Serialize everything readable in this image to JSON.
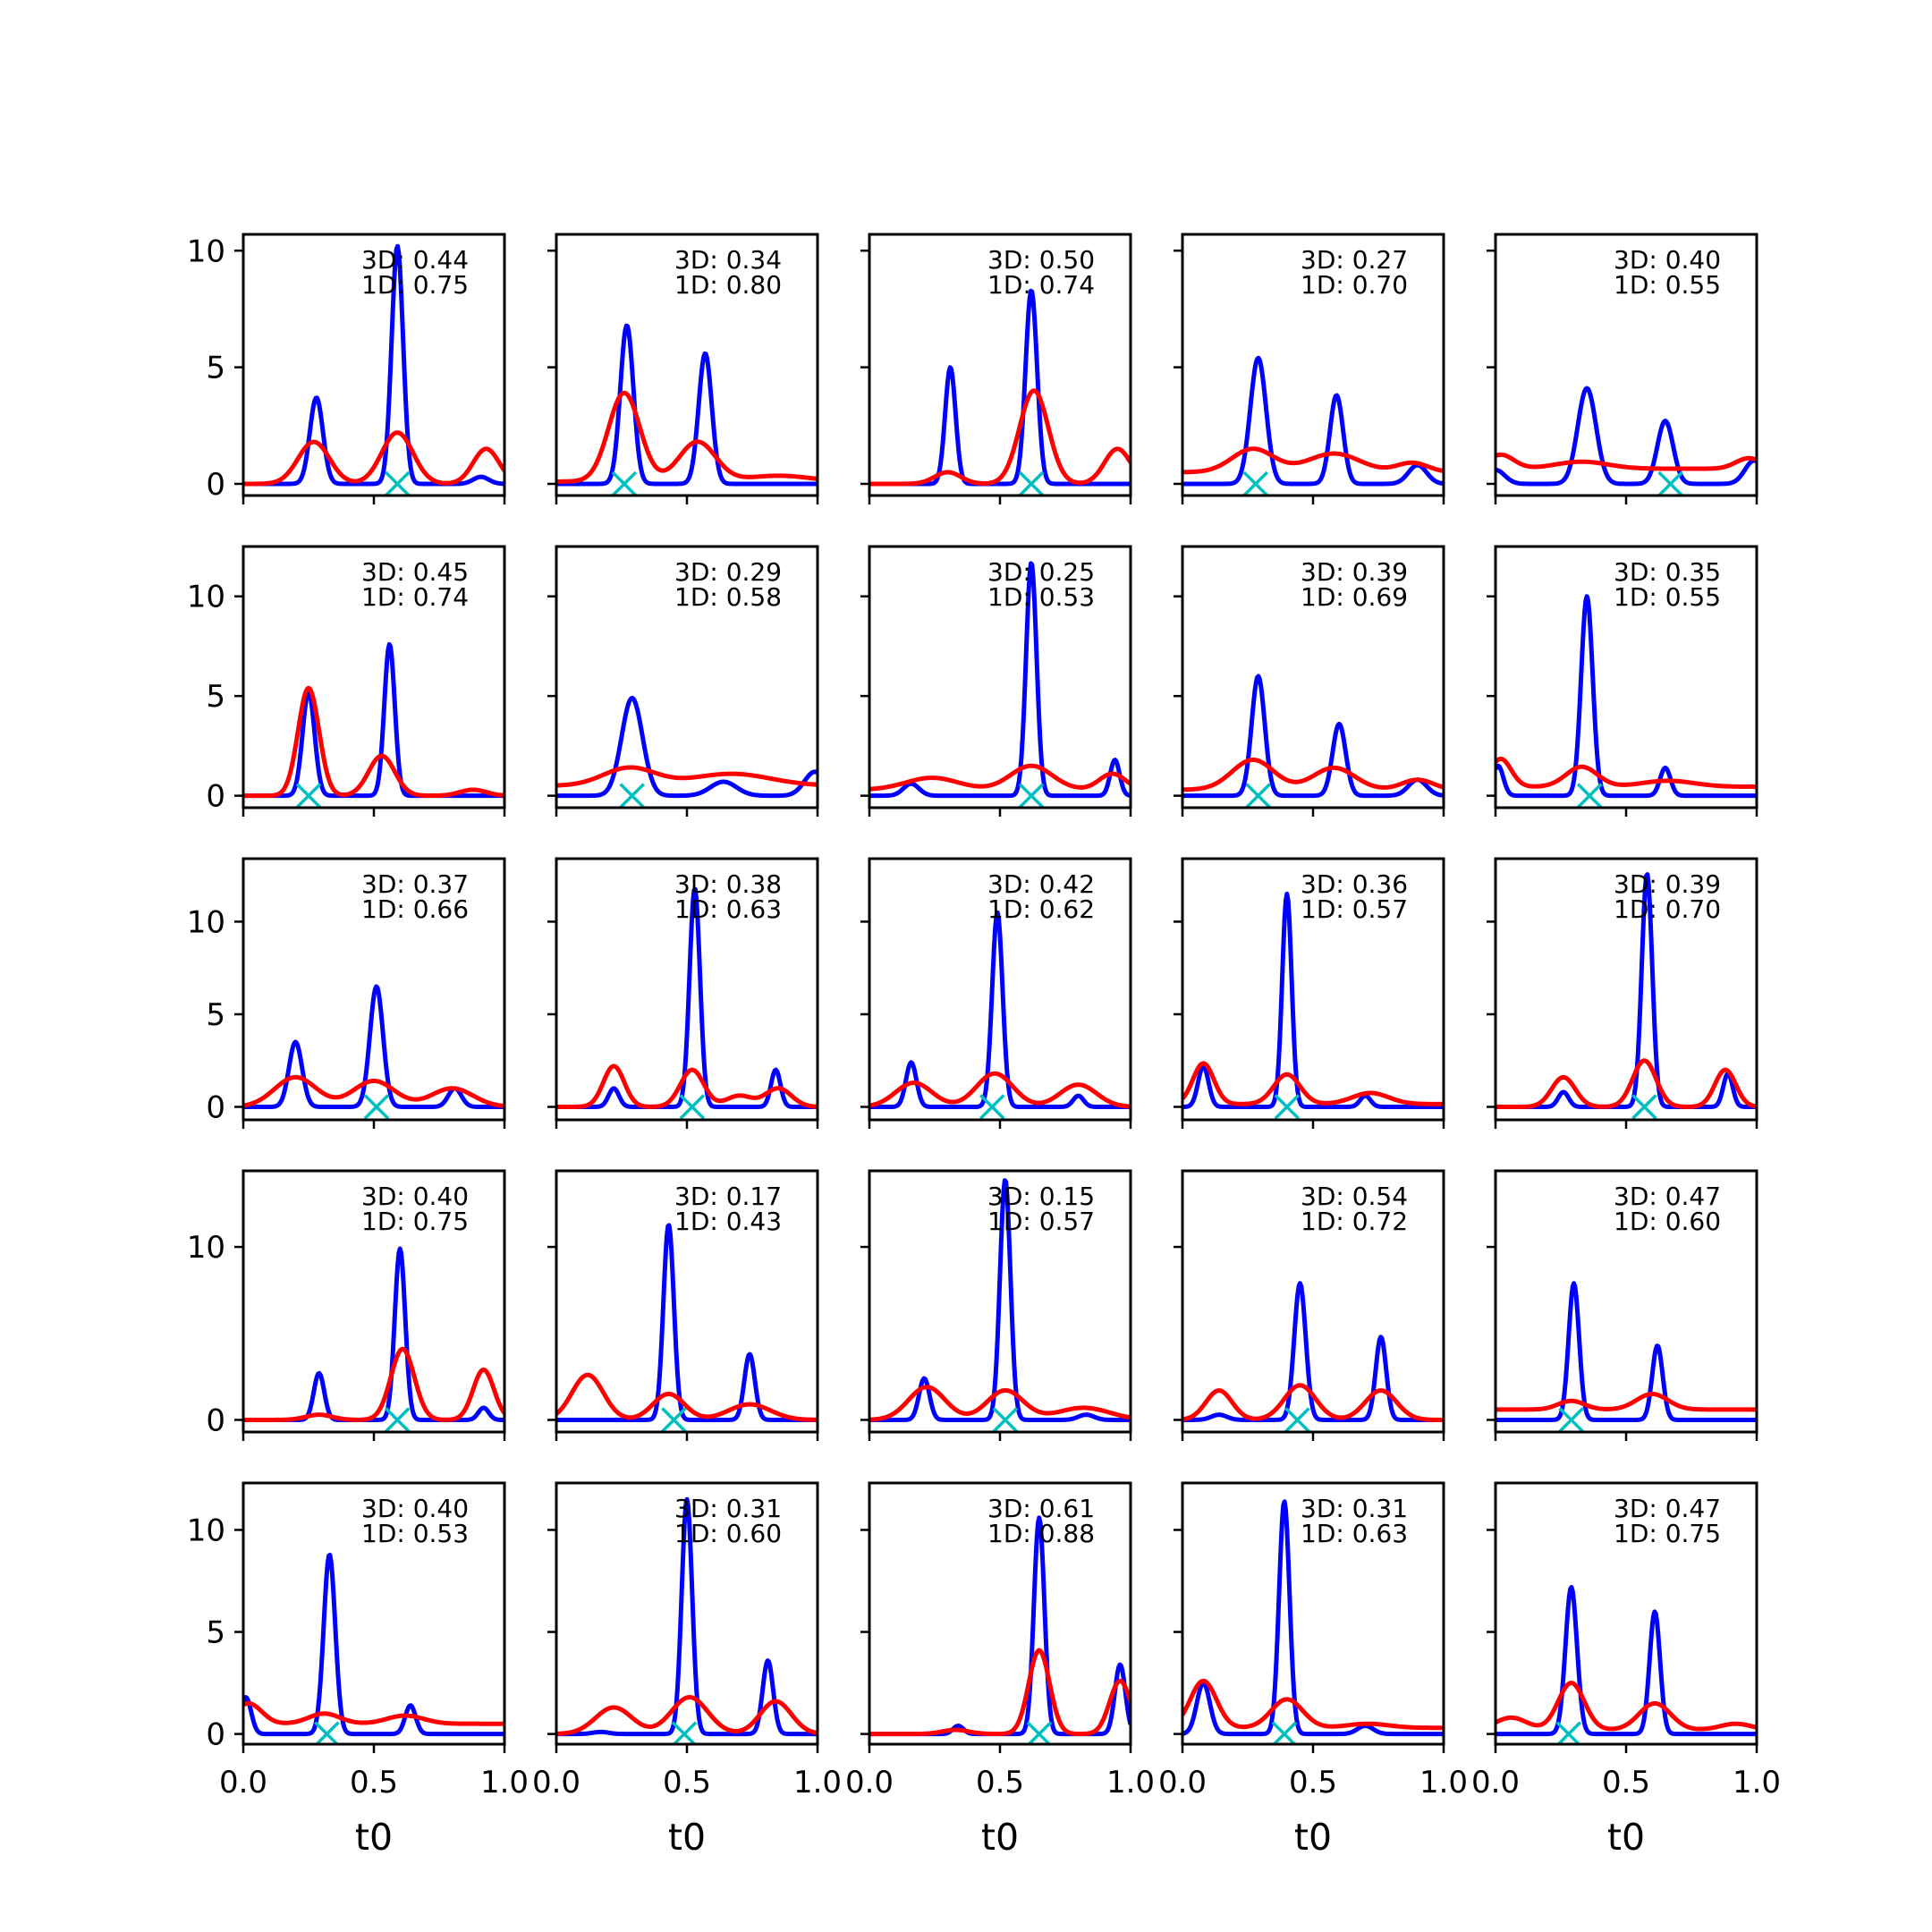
{
  "chart_data": {
    "type": "line",
    "layout": "5x5 grid of subplots, shared x axis (0 to 1), shared y axis per row",
    "xlabel": "t0",
    "xlim": [
      0,
      1
    ],
    "x_ticks": [
      "0.0",
      "0.5",
      "1.0"
    ],
    "colors": {
      "series_a": "#0000ff",
      "series_b": "#ff0000",
      "marker": "#00bfbf"
    },
    "rows": [
      {
        "ylim": [
          -0.5,
          10.7
        ],
        "y_ticks": [
          0,
          5,
          10
        ]
      },
      {
        "ylim": [
          -0.6,
          12.5
        ],
        "y_ticks": [
          0,
          5,
          10
        ]
      },
      {
        "ylim": [
          -0.7,
          13.4
        ],
        "y_ticks": [
          0,
          5,
          10
        ]
      },
      {
        "ylim": [
          -0.7,
          14.4
        ],
        "y_ticks": [
          0,
          10
        ]
      },
      {
        "ylim": [
          -0.5,
          12.3
        ],
        "y_ticks": [
          0,
          5,
          10
        ]
      }
    ],
    "panels": [
      {
        "label_3d": "3D: 0.44",
        "label_1d": "1D: 0.75",
        "marker_x": 0.59,
        "blue": [
          [
            0.28,
            3.7,
            0.025
          ],
          [
            0.59,
            10.2,
            0.022
          ],
          [
            0.91,
            0.3,
            0.03
          ]
        ],
        "red": [
          0.0,
          [
            [
              0.27,
              1.8,
              0.06
            ],
            [
              0.59,
              2.2,
              0.06
            ],
            [
              0.93,
              1.5,
              0.05
            ]
          ]
        ]
      },
      {
        "label_3d": "3D: 0.34",
        "label_1d": "1D: 0.80",
        "marker_x": 0.26,
        "blue": [
          [
            0.27,
            6.8,
            0.025
          ],
          [
            0.57,
            5.6,
            0.025
          ]
        ],
        "red": [
          0.1,
          [
            [
              0.26,
              3.8,
              0.06
            ],
            [
              0.54,
              1.7,
              0.07
            ],
            [
              0.85,
              0.25,
              0.12
            ]
          ]
        ]
      },
      {
        "label_3d": "3D: 0.50",
        "label_1d": "1D: 0.74",
        "marker_x": 0.62,
        "blue": [
          [
            0.31,
            5.0,
            0.02
          ],
          [
            0.62,
            8.3,
            0.022
          ]
        ],
        "red": [
          0.0,
          [
            [
              0.3,
              0.5,
              0.05
            ],
            [
              0.63,
              4.0,
              0.055
            ],
            [
              0.95,
              1.5,
              0.05
            ]
          ]
        ]
      },
      {
        "label_3d": "3D: 0.27",
        "label_1d": "1D: 0.70",
        "marker_x": 0.28,
        "blue": [
          [
            0.29,
            5.4,
            0.03
          ],
          [
            0.59,
            3.8,
            0.025
          ],
          [
            0.9,
            0.8,
            0.035
          ]
        ],
        "red": [
          0.5,
          [
            [
              0.27,
              1.0,
              0.08
            ],
            [
              0.58,
              0.8,
              0.1
            ],
            [
              0.88,
              0.4,
              0.06
            ]
          ]
        ]
      },
      {
        "label_3d": "3D: 0.40",
        "label_1d": "1D: 0.55",
        "marker_x": 0.67,
        "blue": [
          [
            0.0,
            0.6,
            0.035
          ],
          [
            0.35,
            4.1,
            0.035
          ],
          [
            0.65,
            2.7,
            0.03
          ],
          [
            0.99,
            1.0,
            0.035
          ]
        ],
        "red": [
          0.65,
          [
            [
              0.02,
              0.6,
              0.05
            ],
            [
              0.33,
              0.3,
              0.1
            ],
            [
              0.97,
              0.45,
              0.05
            ]
          ]
        ]
      },
      {
        "label_3d": "3D: 0.45",
        "label_1d": "1D: 0.74",
        "marker_x": 0.25,
        "blue": [
          [
            0.25,
            5.2,
            0.023
          ],
          [
            0.56,
            7.6,
            0.02
          ]
        ],
        "red": [
          0.0,
          [
            [
              0.25,
              5.4,
              0.04
            ],
            [
              0.53,
              2.0,
              0.05
            ],
            [
              0.88,
              0.3,
              0.05
            ]
          ]
        ]
      },
      {
        "label_3d": "3D: 0.29",
        "label_1d": "1D: 0.58",
        "marker_x": 0.29,
        "blue": [
          [
            0.29,
            4.9,
            0.04
          ],
          [
            0.64,
            0.7,
            0.05
          ],
          [
            0.99,
            1.2,
            0.04
          ]
        ],
        "red": [
          0.5,
          [
            [
              0.28,
              0.9,
              0.1
            ],
            [
              0.67,
              0.6,
              0.15
            ]
          ]
        ]
      },
      {
        "label_3d": "3D: 0.25",
        "label_1d": "1D: 0.53",
        "marker_x": 0.62,
        "blue": [
          [
            0.16,
            0.6,
            0.03
          ],
          [
            0.62,
            11.7,
            0.02
          ],
          [
            0.94,
            1.8,
            0.018
          ]
        ],
        "red": [
          0.3,
          [
            [
              0.24,
              0.6,
              0.1
            ],
            [
              0.62,
              1.2,
              0.08
            ],
            [
              0.93,
              0.8,
              0.05
            ]
          ]
        ]
      },
      {
        "label_3d": "3D: 0.39",
        "label_1d": "1D: 0.69",
        "marker_x": 0.29,
        "blue": [
          [
            0.29,
            6.0,
            0.025
          ],
          [
            0.6,
            3.6,
            0.025
          ],
          [
            0.9,
            0.8,
            0.035
          ]
        ],
        "red": [
          0.3,
          [
            [
              0.27,
              1.5,
              0.08
            ],
            [
              0.58,
              1.1,
              0.08
            ],
            [
              0.9,
              0.5,
              0.06
            ]
          ]
        ]
      },
      {
        "label_3d": "3D: 0.35",
        "label_1d": "1D: 0.55",
        "marker_x": 0.36,
        "blue": [
          [
            0.01,
            1.5,
            0.02
          ],
          [
            0.35,
            10.0,
            0.022
          ],
          [
            0.65,
            1.4,
            0.02
          ]
        ],
        "red": [
          0.45,
          [
            [
              0.02,
              1.4,
              0.04
            ],
            [
              0.33,
              1.0,
              0.06
            ],
            [
              0.66,
              0.3,
              0.1
            ]
          ]
        ]
      },
      {
        "label_3d": "3D: 0.37",
        "label_1d": "1D: 0.66",
        "marker_x": 0.51,
        "blue": [
          [
            0.2,
            3.5,
            0.025
          ],
          [
            0.51,
            6.5,
            0.025
          ],
          [
            0.81,
            1.0,
            0.025
          ]
        ],
        "red": [
          0.0,
          [
            [
              0.2,
              1.6,
              0.08
            ],
            [
              0.5,
              1.4,
              0.08
            ],
            [
              0.8,
              1.0,
              0.08
            ]
          ]
        ]
      },
      {
        "label_3d": "3D: 0.38",
        "label_1d": "1D: 0.63",
        "marker_x": 0.52,
        "blue": [
          [
            0.22,
            1.0,
            0.02
          ],
          [
            0.53,
            11.8,
            0.02
          ],
          [
            0.84,
            2.0,
            0.018
          ]
        ],
        "red": [
          0.0,
          [
            [
              0.22,
              2.2,
              0.04
            ],
            [
              0.52,
              2.0,
              0.045
            ],
            [
              0.7,
              0.6,
              0.05
            ],
            [
              0.85,
              1.0,
              0.05
            ]
          ]
        ]
      },
      {
        "label_3d": "3D: 0.42",
        "label_1d": "1D: 0.62",
        "marker_x": 0.47,
        "blue": [
          [
            0.16,
            2.4,
            0.02
          ],
          [
            0.49,
            10.5,
            0.02
          ],
          [
            0.8,
            0.6,
            0.02
          ]
        ],
        "red": [
          0.0,
          [
            [
              0.17,
              1.3,
              0.07
            ],
            [
              0.48,
              1.8,
              0.07
            ],
            [
              0.8,
              1.2,
              0.07
            ]
          ]
        ]
      },
      {
        "label_3d": "3D: 0.36",
        "label_1d": "1D: 0.57",
        "marker_x": 0.4,
        "blue": [
          [
            0.08,
            2.2,
            0.02
          ],
          [
            0.4,
            11.5,
            0.018
          ],
          [
            0.7,
            0.6,
            0.02
          ]
        ],
        "red": [
          0.15,
          [
            [
              0.08,
              2.2,
              0.04
            ],
            [
              0.4,
              1.6,
              0.05
            ],
            [
              0.72,
              0.6,
              0.07
            ]
          ]
        ]
      },
      {
        "label_3d": "3D: 0.39",
        "label_1d": "1D: 0.70",
        "marker_x": 0.57,
        "blue": [
          [
            0.26,
            0.8,
            0.02
          ],
          [
            0.58,
            12.6,
            0.02
          ],
          [
            0.89,
            1.8,
            0.018
          ]
        ],
        "red": [
          0.0,
          [
            [
              0.26,
              1.6,
              0.045
            ],
            [
              0.57,
              2.5,
              0.045
            ],
            [
              0.88,
              2.0,
              0.04
            ]
          ]
        ]
      },
      {
        "label_3d": "3D: 0.40",
        "label_1d": "1D: 0.75",
        "marker_x": 0.59,
        "blue": [
          [
            0.29,
            2.7,
            0.02
          ],
          [
            0.6,
            9.9,
            0.02
          ],
          [
            0.92,
            0.7,
            0.02
          ]
        ],
        "red": [
          0.0,
          [
            [
              0.29,
              0.3,
              0.05
            ],
            [
              0.61,
              4.1,
              0.045
            ],
            [
              0.92,
              2.9,
              0.04
            ]
          ]
        ]
      },
      {
        "label_3d": "3D: 0.17",
        "label_1d": "1D: 0.43",
        "marker_x": 0.45,
        "blue": [
          [
            0.43,
            11.3,
            0.02
          ],
          [
            0.74,
            3.8,
            0.02
          ]
        ],
        "red": [
          0.0,
          [
            [
              0.12,
              2.6,
              0.06
            ],
            [
              0.43,
              1.5,
              0.06
            ],
            [
              0.74,
              0.9,
              0.08
            ]
          ]
        ]
      },
      {
        "label_3d": "3D: 0.15",
        "label_1d": "1D: 0.57",
        "marker_x": 0.52,
        "blue": [
          [
            0.21,
            2.4,
            0.02
          ],
          [
            0.52,
            13.9,
            0.02
          ],
          [
            0.83,
            0.3,
            0.03
          ]
        ],
        "red": [
          0.0,
          [
            [
              0.22,
              1.9,
              0.07
            ],
            [
              0.52,
              1.7,
              0.07
            ],
            [
              0.82,
              0.7,
              0.1
            ]
          ]
        ]
      },
      {
        "label_3d": "3D: 0.54",
        "label_1d": "1D: 0.72",
        "marker_x": 0.44,
        "blue": [
          [
            0.14,
            0.3,
            0.03
          ],
          [
            0.45,
            7.9,
            0.022
          ],
          [
            0.76,
            4.8,
            0.02
          ]
        ],
        "red": [
          0.0,
          [
            [
              0.14,
              1.7,
              0.05
            ],
            [
              0.45,
              2.0,
              0.06
            ],
            [
              0.76,
              1.7,
              0.06
            ]
          ]
        ]
      },
      {
        "label_3d": "3D: 0.47",
        "label_1d": "1D: 0.60",
        "marker_x": 0.29,
        "blue": [
          [
            0.3,
            7.9,
            0.02
          ],
          [
            0.62,
            4.3,
            0.02
          ]
        ],
        "red": [
          0.6,
          [
            [
              0.29,
              0.5,
              0.05
            ],
            [
              0.6,
              0.9,
              0.06
            ]
          ]
        ]
      },
      {
        "label_3d": "3D: 0.40",
        "label_1d": "1D: 0.53",
        "marker_x": 0.32,
        "blue": [
          [
            0.01,
            1.8,
            0.02
          ],
          [
            0.33,
            8.8,
            0.022
          ],
          [
            0.64,
            1.4,
            0.02
          ]
        ],
        "red": [
          0.5,
          [
            [
              0.02,
              1.0,
              0.05
            ],
            [
              0.31,
              0.5,
              0.06
            ],
            [
              0.62,
              0.4,
              0.07
            ]
          ]
        ]
      },
      {
        "label_3d": "3D: 0.31",
        "label_1d": "1D: 0.60",
        "marker_x": 0.49,
        "blue": [
          [
            0.17,
            0.1,
            0.03
          ],
          [
            0.5,
            11.5,
            0.02
          ],
          [
            0.81,
            3.6,
            0.02
          ]
        ],
        "red": [
          0.0,
          [
            [
              0.22,
              1.3,
              0.07
            ],
            [
              0.51,
              1.8,
              0.07
            ],
            [
              0.84,
              1.6,
              0.06
            ]
          ]
        ]
      },
      {
        "label_3d": "3D: 0.61",
        "label_1d": "1D: 0.88",
        "marker_x": 0.65,
        "blue": [
          [
            0.34,
            0.4,
            0.02
          ],
          [
            0.65,
            10.6,
            0.02
          ],
          [
            0.96,
            3.4,
            0.02
          ]
        ],
        "red": [
          0.0,
          [
            [
              0.33,
              0.2,
              0.05
            ],
            [
              0.65,
              4.1,
              0.04
            ],
            [
              0.96,
              2.6,
              0.04
            ]
          ]
        ]
      },
      {
        "label_3d": "3D: 0.31",
        "label_1d": "1D: 0.63",
        "marker_x": 0.39,
        "blue": [
          [
            0.08,
            2.5,
            0.025
          ],
          [
            0.39,
            11.4,
            0.02
          ],
          [
            0.7,
            0.4,
            0.03
          ]
        ],
        "red": [
          0.3,
          [
            [
              0.08,
              2.3,
              0.05
            ],
            [
              0.4,
              1.4,
              0.06
            ],
            [
              0.71,
              0.2,
              0.08
            ]
          ]
        ]
      },
      {
        "label_3d": "3D: 0.47",
        "label_1d": "1D: 0.75",
        "marker_x": 0.28,
        "blue": [
          [
            0.29,
            7.2,
            0.022
          ],
          [
            0.61,
            6.0,
            0.02
          ]
        ],
        "red": [
          0.2,
          [
            [
              0.06,
              0.6,
              0.06
            ],
            [
              0.29,
              2.3,
              0.05
            ],
            [
              0.61,
              1.3,
              0.06
            ],
            [
              0.92,
              0.3,
              0.06
            ]
          ]
        ]
      }
    ]
  }
}
